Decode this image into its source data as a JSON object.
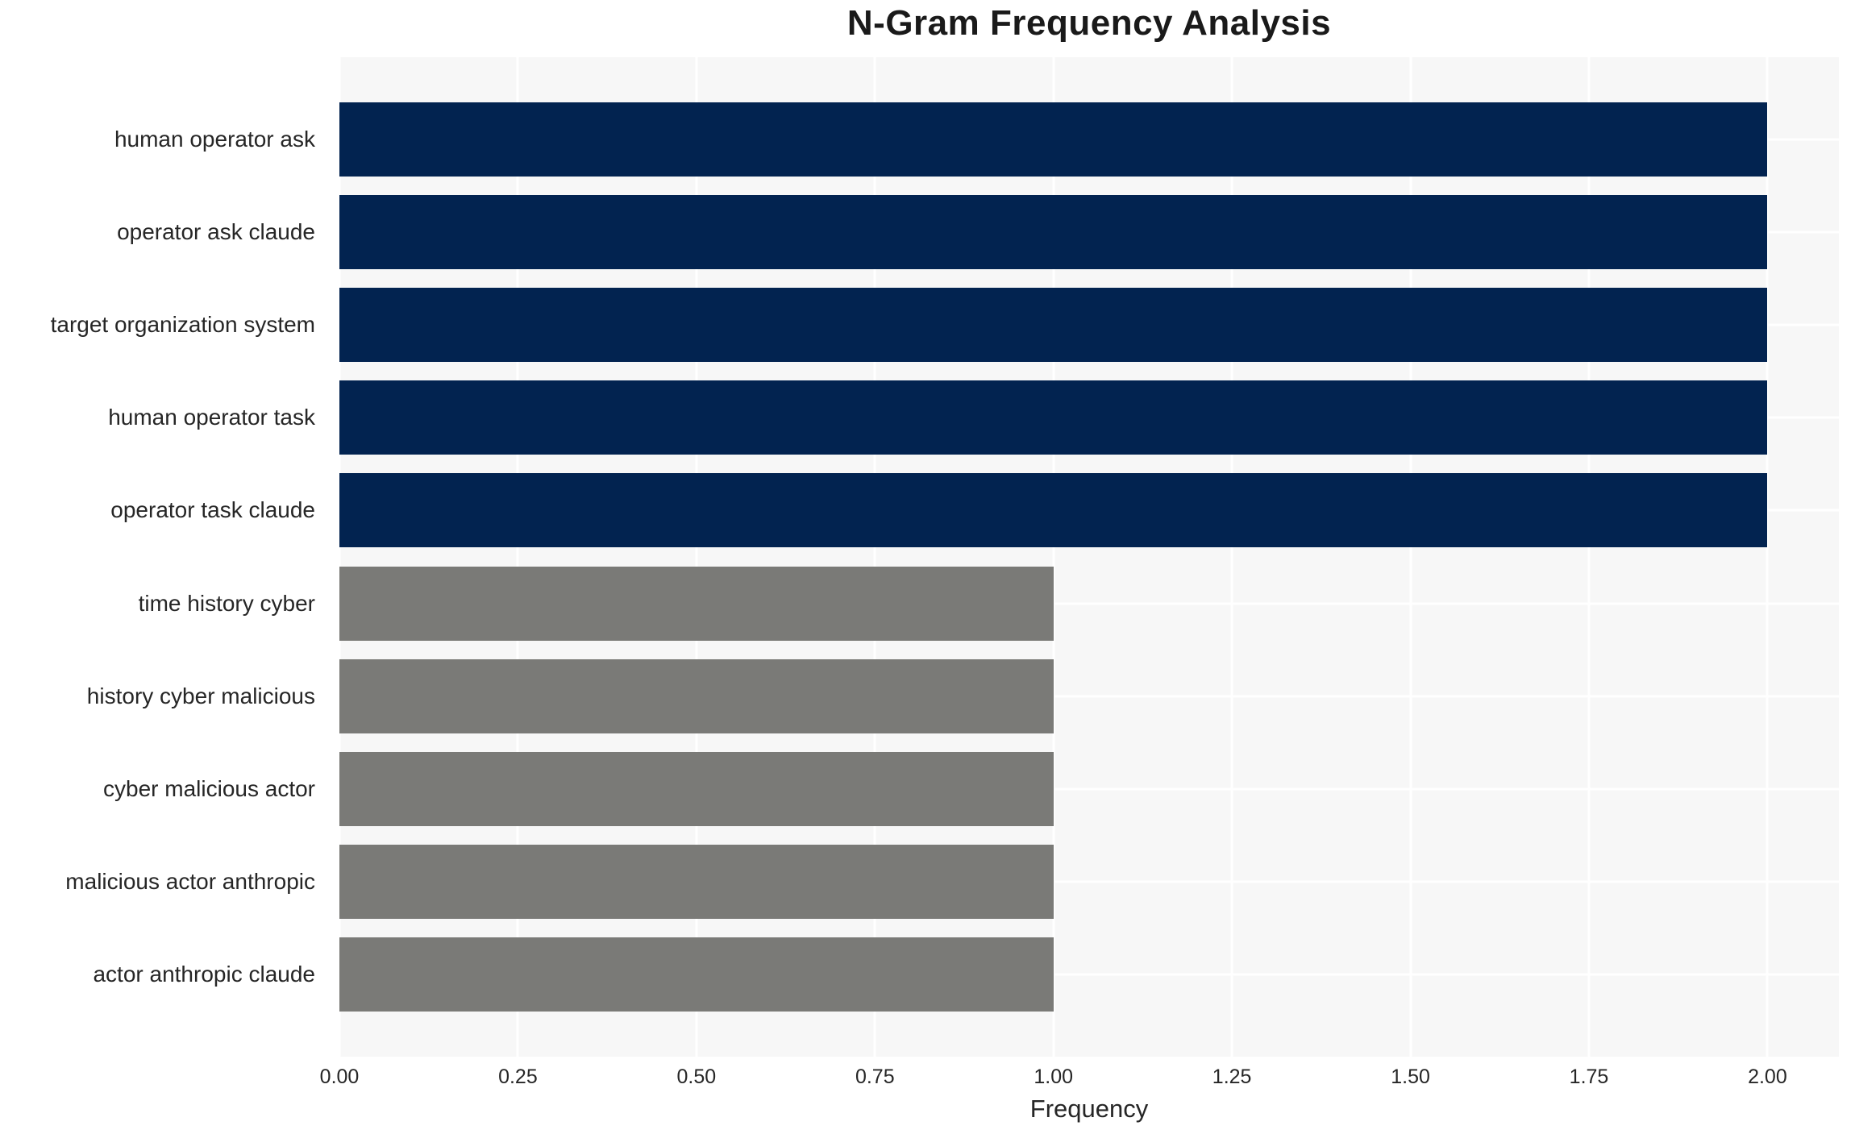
{
  "chart_data": {
    "type": "bar",
    "orientation": "horizontal",
    "title": "N-Gram Frequency Analysis",
    "xlabel": "Frequency",
    "ylabel": "",
    "categories": [
      "human operator ask",
      "operator ask claude",
      "target organization system",
      "human operator task",
      "operator task claude",
      "time history cyber",
      "history cyber malicious",
      "cyber malicious actor",
      "malicious actor anthropic",
      "actor anthropic claude"
    ],
    "values": [
      2,
      2,
      2,
      2,
      2,
      1,
      1,
      1,
      1,
      1
    ],
    "bar_colors": [
      "#022350",
      "#022350",
      "#022350",
      "#022350",
      "#022350",
      "#7a7a77",
      "#7a7a77",
      "#7a7a77",
      "#7a7a77",
      "#7a7a77"
    ],
    "xlim": [
      0,
      2.1
    ],
    "xticks": [
      "0.00",
      "0.25",
      "0.50",
      "0.75",
      "1.00",
      "1.25",
      "1.50",
      "1.75",
      "2.00"
    ],
    "xtick_values": [
      0,
      0.25,
      0.5,
      0.75,
      1.0,
      1.25,
      1.5,
      1.75,
      2.0
    ],
    "grid": true,
    "gridline_color": "#ffffff",
    "legend": false,
    "colors": {
      "high_frequency_bar": "#022350",
      "low_frequency_bar": "#7a7a77",
      "plot_background": "#f7f7f7",
      "figure_background": "#ffffff",
      "text": "#262626",
      "title_text": "#1a1a1a"
    }
  }
}
